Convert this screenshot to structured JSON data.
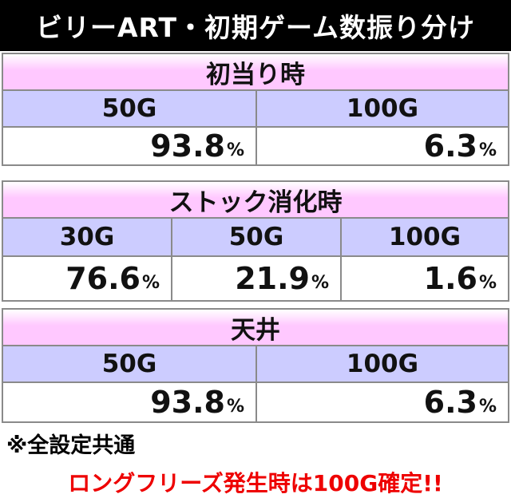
{
  "header": {
    "title": "ビリーART・初期ゲーム数振り分け"
  },
  "sections": [
    {
      "title": "初当り時",
      "columns": [
        "50G",
        "100G"
      ],
      "values": [
        {
          "number": "93.8",
          "unit": "%"
        },
        {
          "number": "6.3",
          "unit": "%"
        }
      ]
    },
    {
      "title": "ストック消化時",
      "columns": [
        "30G",
        "50G",
        "100G"
      ],
      "values": [
        {
          "number": "76.6",
          "unit": "%"
        },
        {
          "number": "21.9",
          "unit": "%"
        },
        {
          "number": "1.6",
          "unit": "%"
        }
      ]
    },
    {
      "title": "天井",
      "columns": [
        "50G",
        "100G"
      ],
      "values": [
        {
          "number": "93.8",
          "unit": "%"
        },
        {
          "number": "6.3",
          "unit": "%"
        }
      ]
    }
  ],
  "footer": {
    "note": "※全設定共通",
    "alert": "ロングフリーズ発生時は100G確定!!"
  }
}
